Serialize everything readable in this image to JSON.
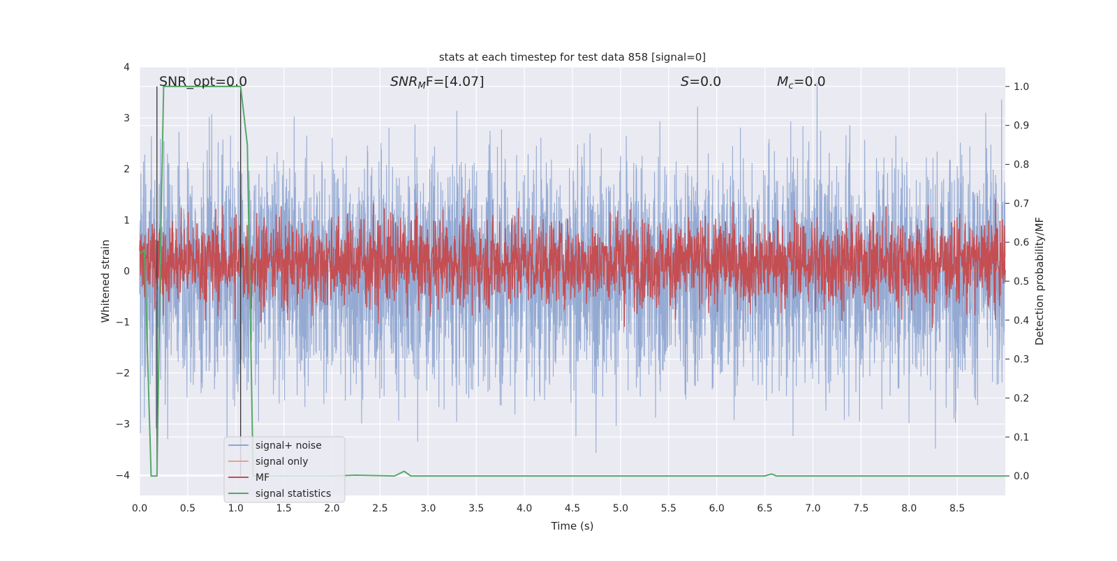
{
  "chart_data": {
    "type": "line",
    "title": "stats at each timestep for test data 858 [signal=0]",
    "xlabel": "Time (s)",
    "ylabel_left": "Whitened strain",
    "ylabel_right": "Detection probability/MF",
    "xlim": [
      0.0,
      9.0
    ],
    "ylim_left": [
      -4.4,
      4.0
    ],
    "ylim_right": [
      -0.05,
      1.05
    ],
    "xticks": [
      "0.0",
      "0.5",
      "1.0",
      "1.5",
      "2.0",
      "2.5",
      "3.0",
      "3.5",
      "4.0",
      "4.5",
      "5.0",
      "5.5",
      "6.0",
      "6.5",
      "7.0",
      "7.5",
      "8.0",
      "8.5"
    ],
    "yticks_left": [
      "−4",
      "−3",
      "−2",
      "−1",
      "0",
      "1",
      "2",
      "3",
      "4"
    ],
    "yticks_right": [
      "0.0",
      "0.1",
      "0.2",
      "0.3",
      "0.4",
      "0.5",
      "0.6",
      "0.7",
      "0.8",
      "0.9",
      "1.0"
    ],
    "grid": true,
    "legend_position": "lower-left",
    "annotations": {
      "snr_opt": "SNR_opt=0.0",
      "snr_mf_main": "SNR",
      "snr_mf_sub": "M",
      "snr_mf_rest": "F=[4.07]",
      "s_main": "S",
      "s_rest": "=0.0",
      "mc_main": "M",
      "mc_sub": "c",
      "mc_rest": "=0.0"
    },
    "series": [
      {
        "name": "signal+ noise",
        "color": "#8fa6d1",
        "axis": "left",
        "kind": "noise",
        "amplitude": 1.3
      },
      {
        "name": "signal only",
        "color": "#e9a287",
        "axis": "left",
        "values": [
          [
            0.0,
            0.0
          ],
          [
            9.0,
            0.0
          ]
        ]
      },
      {
        "name": "MF",
        "color": "#c44e52",
        "axis": "right",
        "kind": "noise-band",
        "center": 0.55,
        "spread": 0.07
      },
      {
        "name": "signal statistics",
        "color": "#55a868",
        "axis": "right",
        "values": [
          [
            0.0,
            0.57
          ],
          [
            0.05,
            0.58
          ],
          [
            0.12,
            0.0
          ],
          [
            0.18,
            0.0
          ],
          [
            0.22,
            0.62
          ],
          [
            0.25,
            1.0
          ],
          [
            1.05,
            1.0
          ],
          [
            1.12,
            0.85
          ],
          [
            1.18,
            0.0
          ],
          [
            2.0,
            0.0
          ],
          [
            2.25,
            0.002
          ],
          [
            2.65,
            0.0
          ],
          [
            2.75,
            0.012
          ],
          [
            2.82,
            0.0
          ],
          [
            6.5,
            0.0
          ],
          [
            6.57,
            0.005
          ],
          [
            6.62,
            0.0
          ],
          [
            9.0,
            0.0
          ]
        ]
      }
    ],
    "vertical_lines": [
      0.18,
      1.05
    ]
  }
}
